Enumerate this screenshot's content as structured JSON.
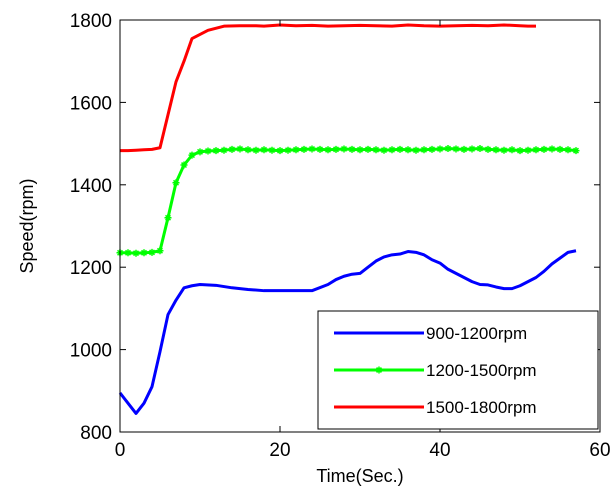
{
  "chart_data": {
    "type": "line",
    "title": "",
    "xlabel": "Time(Sec.)",
    "ylabel": "Speed(rpm)",
    "xlim": [
      0,
      60
    ],
    "ylim": [
      800,
      1800
    ],
    "xticks": [
      0,
      20,
      40,
      60
    ],
    "yticks": [
      800,
      1000,
      1200,
      1400,
      1600,
      1800
    ],
    "grid": false,
    "legend_position": "bottom-right",
    "series": [
      {
        "name": "900-1200rpm",
        "color": "#0000ff",
        "marker": "none",
        "x": [
          0,
          1,
          2,
          3,
          4,
          5,
          6,
          7,
          8,
          9,
          10,
          12,
          14,
          16,
          18,
          20,
          22,
          24,
          26,
          27,
          28,
          29,
          30,
          31,
          32,
          33,
          34,
          35,
          36,
          37,
          38,
          39,
          40,
          41,
          42,
          43,
          44,
          45,
          46,
          47,
          48,
          49,
          50,
          51,
          52,
          53,
          54,
          55,
          56,
          57
        ],
        "y": [
          895,
          870,
          845,
          870,
          910,
          995,
          1085,
          1120,
          1150,
          1155,
          1158,
          1156,
          1150,
          1146,
          1143,
          1143,
          1143,
          1143,
          1158,
          1170,
          1178,
          1183,
          1185,
          1200,
          1215,
          1225,
          1230,
          1232,
          1238,
          1236,
          1230,
          1218,
          1210,
          1195,
          1185,
          1175,
          1165,
          1158,
          1157,
          1152,
          1148,
          1148,
          1155,
          1165,
          1175,
          1190,
          1208,
          1222,
          1236,
          1240
        ]
      },
      {
        "name": "1200-1500rpm",
        "color": "#00ff00",
        "marker": "star",
        "x": [
          0,
          1,
          2,
          3,
          4,
          5,
          6,
          7,
          8,
          9,
          10,
          11,
          12,
          13,
          14,
          15,
          16,
          17,
          18,
          19,
          20,
          21,
          22,
          23,
          24,
          25,
          26,
          27,
          28,
          29,
          30,
          31,
          32,
          33,
          34,
          35,
          36,
          37,
          38,
          39,
          40,
          41,
          42,
          43,
          44,
          45,
          46,
          47,
          48,
          49,
          50,
          51,
          52,
          53,
          54,
          55,
          56,
          57
        ],
        "y": [
          1235,
          1235,
          1234,
          1235,
          1236,
          1240,
          1320,
          1405,
          1448,
          1472,
          1480,
          1482,
          1483,
          1484,
          1486,
          1487,
          1485,
          1484,
          1485,
          1484,
          1483,
          1484,
          1485,
          1486,
          1487,
          1486,
          1485,
          1486,
          1487,
          1486,
          1485,
          1486,
          1485,
          1484,
          1485,
          1486,
          1485,
          1484,
          1485,
          1486,
          1487,
          1488,
          1487,
          1486,
          1487,
          1488,
          1486,
          1485,
          1484,
          1485,
          1483,
          1484,
          1485,
          1486,
          1487,
          1486,
          1485,
          1483
        ]
      },
      {
        "name": "1500-1800rpm",
        "color": "#ff0000",
        "marker": "none",
        "x": [
          0,
          1,
          2,
          3,
          4,
          5,
          6,
          7,
          8,
          9,
          10,
          11,
          13,
          15,
          17,
          18,
          20,
          22,
          24,
          26,
          28,
          30,
          32,
          34,
          36,
          38,
          40,
          42,
          44,
          46,
          48,
          50,
          51,
          52
        ],
        "y": [
          1483,
          1483,
          1484,
          1485,
          1486,
          1490,
          1570,
          1650,
          1700,
          1755,
          1765,
          1775,
          1785,
          1786,
          1786,
          1785,
          1788,
          1786,
          1787,
          1785,
          1786,
          1787,
          1786,
          1785,
          1788,
          1786,
          1785,
          1786,
          1787,
          1786,
          1788,
          1786,
          1785,
          1785
        ]
      }
    ]
  }
}
